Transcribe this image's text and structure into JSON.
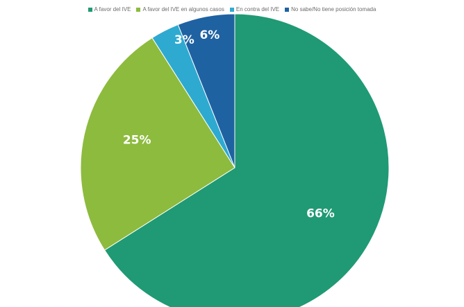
{
  "chart_data": {
    "type": "pie",
    "title": "",
    "legend_position": "top",
    "series": [
      {
        "name": "A favor del IVE",
        "value": 66,
        "label": "66%",
        "color": "#1f9a74"
      },
      {
        "name": "A favor del IVE en algunos casos",
        "value": 25,
        "label": "25%",
        "color": "#8dbb3e"
      },
      {
        "name": "En contra del IVE",
        "value": 3,
        "label": "3%",
        "color": "#2eaad1"
      },
      {
        "name": "No sabe/No tiene posición tomada",
        "value": 6,
        "label": "6%",
        "color": "#1f62a2"
      }
    ]
  }
}
